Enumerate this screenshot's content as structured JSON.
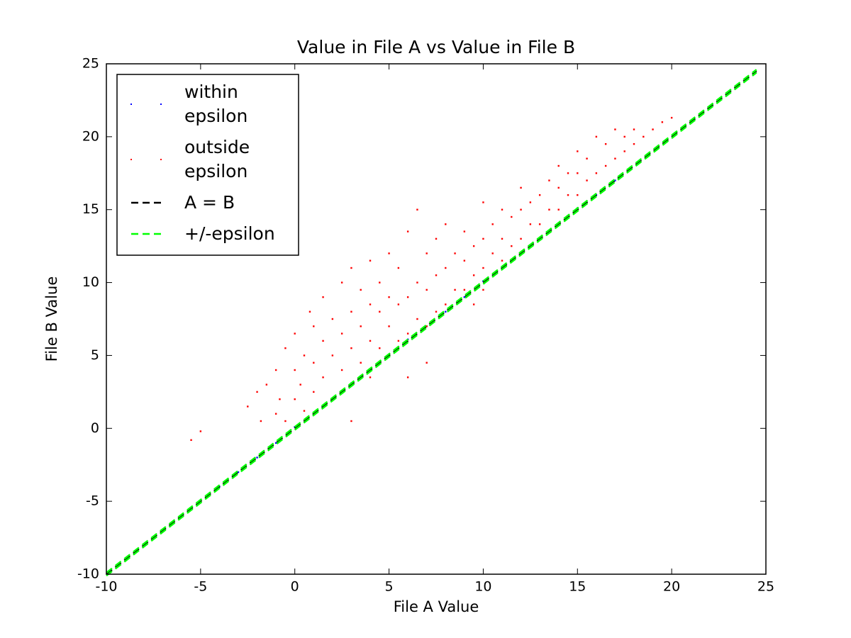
{
  "chart_data": {
    "type": "scatter",
    "title": "Value in File A vs Value in File B",
    "x_label": "File A Value",
    "y_label": "File B Value",
    "xlim": [
      -10,
      25
    ],
    "ylim": [
      -10,
      25
    ],
    "xticks": [
      -10,
      -5,
      0,
      5,
      10,
      15,
      20,
      25
    ],
    "yticks": [
      -10,
      -5,
      0,
      5,
      10,
      15,
      20,
      25
    ],
    "grid": false,
    "legend": "upper left",
    "series": [
      {
        "name": "within\nepsilon",
        "color": "#0000ff",
        "type": "scatter",
        "x": [
          -8,
          -7,
          -6,
          -5,
          -4,
          -3,
          -2,
          -1,
          0,
          1,
          2,
          3,
          4,
          5,
          6,
          7,
          8,
          9,
          10,
          11,
          12,
          13,
          14,
          15,
          16,
          17
        ],
        "values": [
          -8,
          -7,
          -6,
          -5,
          -4,
          -3,
          -2,
          -1,
          0.1,
          1,
          2,
          3.1,
          4,
          5,
          6.1,
          7,
          8,
          9,
          10.1,
          11,
          12,
          13,
          14,
          15.1,
          16,
          17
        ]
      },
      {
        "name": "outside\nepsilon",
        "color": "#ff0000",
        "type": "scatter",
        "x": [
          -2.5,
          -2,
          -1.8,
          -1.5,
          -1,
          -1,
          -0.8,
          -0.5,
          -0.5,
          0,
          0,
          0,
          0.3,
          0.5,
          0.5,
          0.8,
          1,
          1,
          1,
          1.5,
          1.5,
          1.5,
          2,
          2,
          2,
          2.5,
          2.5,
          2.5,
          3,
          3,
          3,
          3,
          3.5,
          3.5,
          3.5,
          4,
          4,
          4,
          4,
          4.5,
          4.5,
          4.5,
          5,
          5,
          5,
          5,
          5.5,
          5.5,
          5.5,
          6,
          6,
          6,
          6.5,
          6.5,
          6.5,
          7,
          7,
          7,
          7.5,
          7.5,
          7.5,
          8,
          8,
          8,
          8.5,
          8.5,
          9,
          9,
          9,
          9.5,
          9.5,
          10,
          10,
          10,
          10,
          10.5,
          10.5,
          11,
          11,
          11,
          11.5,
          11.5,
          12,
          12,
          12,
          12.5,
          12.5,
          13,
          13,
          13.5,
          13.5,
          14,
          14,
          14,
          14.5,
          14.5,
          15,
          15,
          15,
          15.5,
          15.5,
          16,
          16,
          16.5,
          16.5,
          17,
          17,
          17.5,
          17.5,
          18,
          18,
          18.5,
          19,
          19.5,
          20,
          -5.5,
          -5,
          9.5,
          6,
          7,
          3
        ],
        "values": [
          1.5,
          2.5,
          0.5,
          3,
          1,
          4,
          2,
          5.5,
          0.5,
          2,
          4,
          6.5,
          3,
          1.2,
          5,
          8,
          2.5,
          4.5,
          7,
          3.5,
          6,
          9,
          2,
          5,
          7.5,
          4,
          6.5,
          10,
          3,
          5.5,
          8,
          11,
          4.5,
          7,
          9.5,
          3.5,
          6,
          8.5,
          11.5,
          5.5,
          8,
          10,
          5,
          7,
          9,
          12,
          6,
          8.5,
          11,
          6.5,
          9,
          13.5,
          7.5,
          10,
          15,
          7,
          9.5,
          12,
          8,
          10.5,
          13,
          8.5,
          11,
          14,
          9.5,
          12,
          9.5,
          11.5,
          13.5,
          10.5,
          12.5,
          9.5,
          11,
          13,
          15.5,
          12,
          14,
          11.5,
          13,
          15,
          12.5,
          14.5,
          13,
          15,
          16.5,
          14,
          15.5,
          14,
          16,
          15,
          17,
          15,
          16.5,
          18,
          16,
          17.5,
          16,
          17.5,
          19,
          17,
          18.5,
          17.5,
          20,
          18,
          19.5,
          18.5,
          20.5,
          19,
          20,
          19.5,
          20.5,
          20,
          20.5,
          21,
          21.3,
          -0.8,
          -0.2,
          8.5,
          3.5,
          4.5,
          0.5
        ]
      },
      {
        "name": "A = B",
        "color": "#000000",
        "type": "line",
        "style": "dashed",
        "x": [
          -10,
          24.5
        ],
        "values": [
          -10,
          24.5
        ]
      },
      {
        "name": "+/-epsilon",
        "color": "#00ff00",
        "type": "line",
        "style": "dashed",
        "x": [
          -10,
          24.5,
          null,
          -10,
          24.5
        ],
        "values": [
          -9.9,
          24.6,
          null,
          -10.1,
          24.4
        ]
      }
    ]
  }
}
